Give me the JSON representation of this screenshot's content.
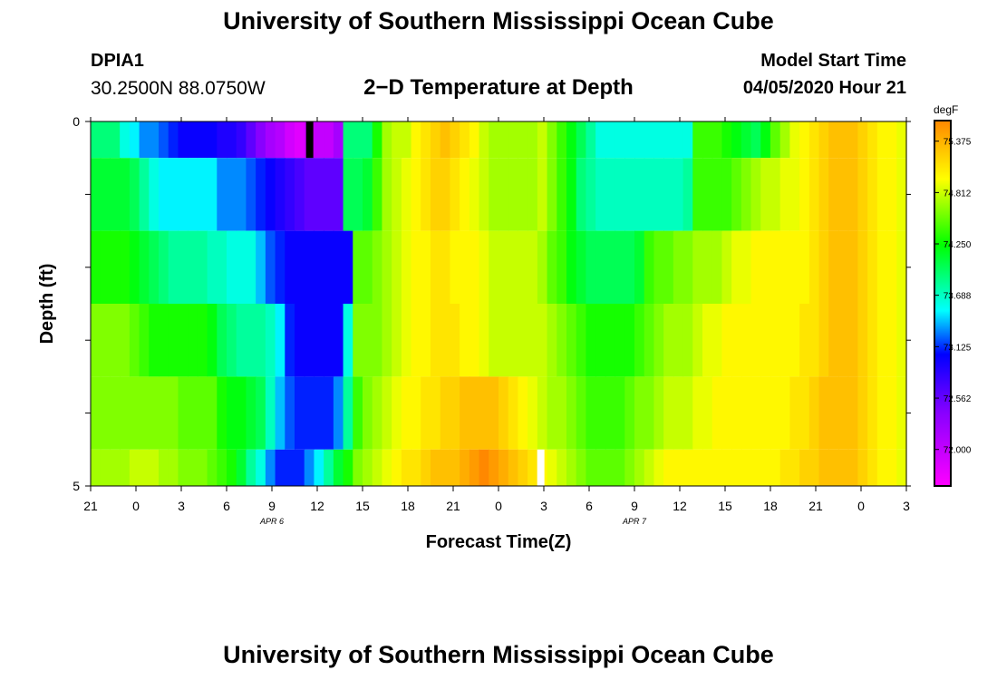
{
  "header": {
    "title": "University of Southern Mississippi Ocean Cube",
    "station": "DPIA1",
    "coords": "30.2500N 88.0750W",
    "subtitle": "2−D Temperature at Depth",
    "start_label": "Model Start Time",
    "start_value": "04/05/2020 Hour 21"
  },
  "footer": {
    "title": "University of Southern Mississippi Ocean Cube"
  },
  "chart_data": {
    "type": "heatmap",
    "title": "2−D Temperature at Depth",
    "xlabel": "Forecast Time(Z)",
    "ylabel": "Depth (ft)",
    "x_tick_labels": [
      "21",
      "0",
      "3",
      "6",
      "9",
      "12",
      "15",
      "18",
      "21",
      "0",
      "3",
      "6",
      "9",
      "12",
      "15",
      "18",
      "21",
      "0",
      "3"
    ],
    "x_range_hours": [
      0,
      54
    ],
    "date_labels": [
      {
        "text": "APR 6",
        "hour": 15
      },
      {
        "text": "APR 7",
        "hour": 39
      }
    ],
    "y_tick_labels": [
      "0",
      "5"
    ],
    "y_range": [
      0,
      5
    ],
    "depth_bands": [
      "0-0.5",
      "0.5-1.5",
      "1.5-2.5",
      "2.5-3.5",
      "3.5-4.5",
      "4.5-5"
    ],
    "colorbar": {
      "unit": "degF",
      "min": 71.6,
      "max": 75.6,
      "tick_values": [
        "75.375",
        "74.812",
        "74.250",
        "73.688",
        "73.125",
        "72.562",
        "72.000"
      ]
    },
    "values_degF": [
      [
        73.9,
        73.9,
        73.9,
        73.6,
        73.5,
        73.3,
        73.3,
        73.2,
        73.1,
        73.0,
        73.0,
        73.0,
        73.0,
        72.9,
        72.9,
        72.8,
        72.6,
        72.4,
        72.2,
        72.1,
        71.9,
        71.8,
        71.9,
        72.0,
        72.0,
        72.2,
        73.9,
        73.9,
        73.9,
        74.3,
        74.7,
        74.8,
        74.8,
        75.0,
        75.1,
        75.2,
        75.3,
        75.2,
        75.1,
        75.0,
        74.8,
        74.7,
        74.7,
        74.7,
        74.7,
        74.7,
        74.8,
        74.6,
        74.4,
        74.2,
        74.0,
        73.8,
        73.6,
        73.6,
        73.6,
        73.6,
        73.6,
        73.6,
        73.6,
        73.6,
        73.6,
        73.6,
        74.4,
        74.4,
        74.4,
        74.3,
        74.2,
        74.1,
        74.0,
        74.2,
        74.5,
        74.7,
        74.9,
        75.0,
        75.1,
        75.2,
        75.3,
        75.3,
        75.3,
        75.2,
        75.1,
        75.0,
        75.0,
        74.9
      ],
      [
        74.1,
        74.1,
        74.1,
        74.1,
        74.0,
        73.8,
        73.6,
        73.5,
        73.5,
        73.5,
        73.5,
        73.5,
        73.5,
        73.3,
        73.3,
        73.3,
        73.2,
        73.1,
        73.0,
        72.9,
        72.8,
        72.7,
        72.6,
        72.6,
        72.6,
        72.6,
        74.0,
        74.0,
        74.1,
        74.4,
        74.7,
        74.8,
        74.9,
        75.0,
        75.1,
        75.2,
        75.2,
        75.1,
        75.0,
        74.9,
        74.8,
        74.7,
        74.7,
        74.7,
        74.7,
        74.7,
        74.8,
        74.6,
        74.4,
        74.2,
        73.9,
        73.8,
        73.7,
        73.7,
        73.7,
        73.7,
        73.7,
        73.7,
        73.7,
        73.7,
        73.7,
        73.8,
        74.4,
        74.4,
        74.4,
        74.4,
        74.5,
        74.6,
        74.7,
        74.8,
        74.8,
        74.9,
        74.9,
        75.0,
        75.1,
        75.2,
        75.3,
        75.3,
        75.3,
        75.2,
        75.1,
        75.0,
        75.0,
        74.9
      ],
      [
        74.3,
        74.3,
        74.3,
        74.3,
        74.2,
        74.1,
        74.0,
        73.9,
        73.8,
        73.8,
        73.8,
        73.8,
        73.7,
        73.7,
        73.6,
        73.6,
        73.6,
        73.4,
        73.2,
        73.1,
        73.0,
        73.0,
        73.0,
        73.0,
        73.0,
        73.0,
        73.0,
        74.5,
        74.5,
        74.6,
        74.7,
        74.8,
        74.9,
        75.0,
        75.0,
        75.1,
        75.1,
        75.0,
        75.0,
        75.0,
        74.9,
        74.8,
        74.8,
        74.8,
        74.8,
        74.8,
        74.7,
        74.5,
        74.4,
        74.2,
        74.1,
        74.0,
        74.0,
        74.0,
        74.0,
        74.0,
        74.1,
        74.4,
        74.5,
        74.5,
        74.6,
        74.6,
        74.7,
        74.7,
        74.7,
        74.8,
        74.9,
        74.9,
        75.0,
        75.0,
        75.0,
        75.0,
        75.0,
        75.0,
        75.1,
        75.2,
        75.3,
        75.3,
        75.3,
        75.2,
        75.1,
        75.0,
        75.0,
        74.9
      ],
      [
        74.6,
        74.6,
        74.6,
        74.6,
        74.5,
        74.4,
        74.3,
        74.3,
        74.3,
        74.3,
        74.3,
        74.3,
        74.2,
        74.0,
        73.9,
        73.8,
        73.8,
        73.8,
        73.7,
        73.5,
        73.1,
        73.0,
        73.0,
        73.0,
        73.0,
        73.0,
        73.6,
        74.6,
        74.6,
        74.6,
        74.7,
        74.8,
        74.9,
        75.0,
        75.0,
        75.1,
        75.1,
        75.1,
        75.0,
        75.0,
        74.9,
        74.8,
        74.8,
        74.8,
        74.8,
        74.8,
        74.8,
        74.7,
        74.6,
        74.5,
        74.4,
        74.3,
        74.3,
        74.3,
        74.3,
        74.3,
        74.4,
        74.5,
        74.6,
        74.7,
        74.7,
        74.7,
        74.8,
        74.9,
        74.9,
        75.0,
        75.0,
        75.0,
        75.0,
        75.0,
        75.0,
        75.0,
        75.0,
        75.1,
        75.1,
        75.2,
        75.3,
        75.3,
        75.3,
        75.2,
        75.1,
        75.0,
        75.0,
        74.9
      ],
      [
        74.6,
        74.6,
        74.6,
        74.6,
        74.6,
        74.6,
        74.6,
        74.6,
        74.6,
        74.5,
        74.5,
        74.5,
        74.5,
        74.3,
        74.2,
        74.2,
        74.1,
        74.0,
        73.7,
        73.4,
        73.2,
        73.1,
        73.1,
        73.1,
        73.1,
        73.3,
        73.8,
        74.4,
        74.6,
        74.7,
        74.8,
        74.9,
        75.0,
        75.0,
        75.1,
        75.1,
        75.2,
        75.2,
        75.3,
        75.3,
        75.3,
        75.3,
        75.2,
        75.1,
        75.0,
        74.9,
        74.8,
        74.7,
        74.7,
        74.6,
        74.5,
        74.4,
        74.4,
        74.4,
        74.4,
        74.5,
        74.6,
        74.6,
        74.7,
        74.8,
        74.8,
        74.8,
        74.9,
        74.9,
        75.0,
        75.0,
        75.0,
        75.0,
        75.0,
        75.0,
        75.0,
        75.0,
        75.1,
        75.1,
        75.2,
        75.3,
        75.3,
        75.3,
        75.3,
        75.2,
        75.1,
        75.0,
        75.0,
        74.9
      ],
      [
        74.7,
        74.7,
        74.7,
        74.7,
        74.8,
        74.8,
        74.8,
        74.7,
        74.7,
        74.6,
        74.6,
        74.6,
        74.5,
        74.4,
        74.3,
        74.1,
        73.8,
        73.6,
        73.3,
        73.1,
        73.1,
        73.1,
        73.3,
        73.5,
        73.8,
        74.1,
        74.3,
        74.6,
        74.7,
        74.8,
        74.9,
        75.0,
        75.1,
        75.1,
        75.2,
        75.3,
        75.3,
        75.3,
        75.4,
        75.5,
        75.6,
        75.5,
        75.4,
        75.3,
        75.2,
        75.1,
        75.0,
        74.9,
        74.8,
        74.7,
        74.6,
        74.5,
        74.5,
        74.5,
        74.5,
        74.6,
        74.7,
        74.8,
        74.9,
        75.0,
        75.0,
        75.0,
        75.0,
        75.0,
        75.0,
        75.0,
        75.0,
        75.0,
        75.0,
        75.0,
        75.0,
        75.1,
        75.1,
        75.2,
        75.2,
        75.3,
        75.3,
        75.3,
        75.3,
        75.2,
        75.1,
        75.0,
        75.0,
        74.9
      ]
    ],
    "missing_cells": [
      {
        "band": 0,
        "hour": 14.5,
        "color": "#000000"
      },
      {
        "band": 5,
        "hour": 29.8,
        "color": "#ffffff"
      }
    ]
  }
}
